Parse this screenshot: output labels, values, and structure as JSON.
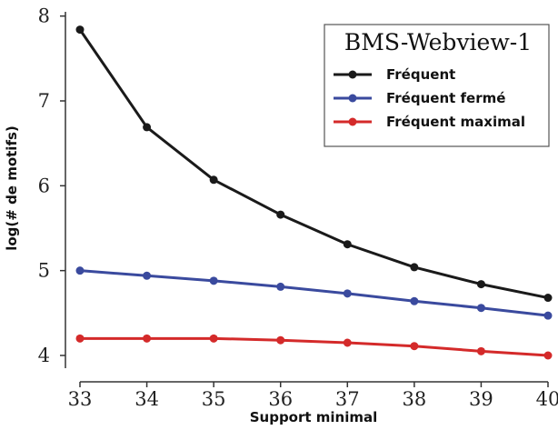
{
  "chart_data": {
    "type": "line",
    "title": "",
    "xlabel": "Support minimal",
    "ylabel": "log(# de motifs)",
    "x": [
      33,
      34,
      35,
      36,
      37,
      38,
      39,
      40
    ],
    "xlim": [
      33,
      40
    ],
    "ylim": [
      3.85,
      8.05
    ],
    "yticks": [
      4,
      5,
      6,
      7,
      8
    ],
    "grid": false,
    "legend": {
      "title": "BMS-Webview-1",
      "placement": "top-right"
    },
    "series": [
      {
        "name": "Fréquent",
        "color": "#1a1a1a",
        "values": [
          7.84,
          6.69,
          6.07,
          5.66,
          5.31,
          5.04,
          4.84,
          4.68
        ]
      },
      {
        "name": "Fréquent fermé",
        "color": "#3a4a9e",
        "values": [
          5.0,
          4.94,
          4.88,
          4.81,
          4.73,
          4.64,
          4.56,
          4.47
        ]
      },
      {
        "name": "Fréquent maximal",
        "color": "#d42a2a",
        "values": [
          4.2,
          4.2,
          4.2,
          4.18,
          4.15,
          4.11,
          4.05,
          4.0
        ]
      }
    ]
  }
}
